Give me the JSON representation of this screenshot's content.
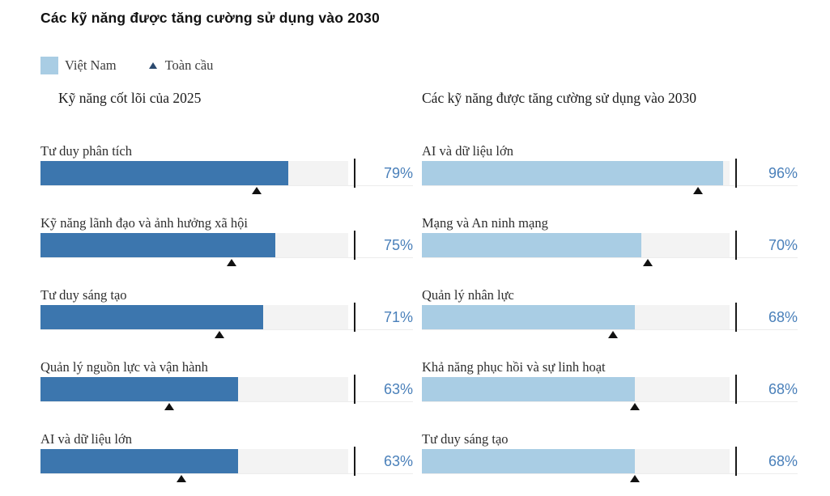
{
  "title": "Các kỹ năng được tăng cường sử dụng vào 2030",
  "legend": {
    "vietnam": "Việt Nam",
    "global": "Toàn cầu"
  },
  "colors": {
    "vietnam_2025_bar": "#3c76ae",
    "vietnam_2030_bar": "#a9cde4",
    "track": "#f3f3f3",
    "tick": "#1a1a1a",
    "global_marker": "#111111",
    "legend_marker": "#2b4a6f",
    "percent_text": "#4a80ba"
  },
  "chart_data": [
    {
      "type": "bar",
      "title": "Kỹ năng cốt lõi của 2025",
      "orientation": "horizontal",
      "xlim": [
        0,
        100
      ],
      "unit": "%",
      "tick_at": 100,
      "series_names": [
        "Việt Nam",
        "Toàn cầu"
      ],
      "rows": [
        {
          "label": "Tư duy phân tích",
          "vietnam": 79,
          "global": 69,
          "value_label": "79%"
        },
        {
          "label": "Kỹ năng lãnh đạo và ảnh hưởng xã hội",
          "vietnam": 75,
          "global": 61,
          "value_label": "75%"
        },
        {
          "label": "Tư duy sáng tạo",
          "vietnam": 71,
          "global": 57,
          "value_label": "71%"
        },
        {
          "label": "Quản lý nguồn lực và vận hành",
          "vietnam": 63,
          "global": 41,
          "value_label": "63%"
        },
        {
          "label": "AI và dữ liệu lớn",
          "vietnam": 63,
          "global": 45,
          "value_label": "63%"
        }
      ]
    },
    {
      "type": "bar",
      "title": "Các kỹ năng được tăng cường sử dụng vào 2030",
      "orientation": "horizontal",
      "xlim": [
        0,
        100
      ],
      "unit": "%",
      "tick_at": 100,
      "series_names": [
        "Việt Nam",
        "Toàn cầu"
      ],
      "rows": [
        {
          "label": "AI và dữ liệu lớn",
          "vietnam": 96,
          "global": 88,
          "value_label": "96%"
        },
        {
          "label": "Mạng và An ninh mạng",
          "vietnam": 70,
          "global": 72,
          "value_label": "70%"
        },
        {
          "label": "Quản lý nhân lực",
          "vietnam": 68,
          "global": 61,
          "value_label": "68%"
        },
        {
          "label": "Khả năng phục hồi và sự linh hoạt",
          "vietnam": 68,
          "global": 68,
          "value_label": "68%"
        },
        {
          "label": "Tư duy sáng tạo",
          "vietnam": 68,
          "global": 68,
          "value_label": "68%"
        }
      ]
    }
  ]
}
